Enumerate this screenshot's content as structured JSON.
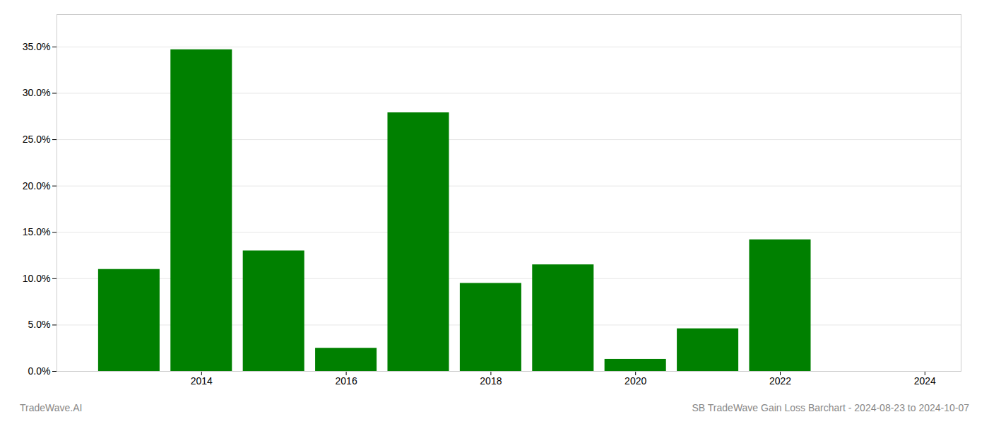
{
  "chart_data": {
    "type": "bar",
    "x": [
      2013,
      2014,
      2015,
      2016,
      2017,
      2018,
      2019,
      2020,
      2021,
      2022,
      2023
    ],
    "values": [
      0.11,
      0.347,
      0.13,
      0.025,
      0.279,
      0.095,
      0.115,
      0.013,
      0.046,
      0.142,
      0.0
    ],
    "color": "#008000",
    "xlim": [
      2012.0,
      2024.5
    ],
    "ylim": [
      0.0,
      0.385
    ],
    "xticks": [
      2014,
      2016,
      2018,
      2020,
      2022,
      2024
    ],
    "yticks": [
      {
        "value": 0.0,
        "label": "0.0%"
      },
      {
        "value": 0.05,
        "label": "5.0%"
      },
      {
        "value": 0.1,
        "label": "10.0%"
      },
      {
        "value": 0.15,
        "label": "15.0%"
      },
      {
        "value": 0.2,
        "label": "20.0%"
      },
      {
        "value": 0.25,
        "label": "25.0%"
      },
      {
        "value": 0.3,
        "label": "30.0%"
      },
      {
        "value": 0.35,
        "label": "35.0%"
      }
    ],
    "grid": true,
    "annotations": [
      "TradeWave.AI",
      "SB TradeWave Gain Loss Barchart - 2024-08-23 to 2024-10-07"
    ]
  }
}
